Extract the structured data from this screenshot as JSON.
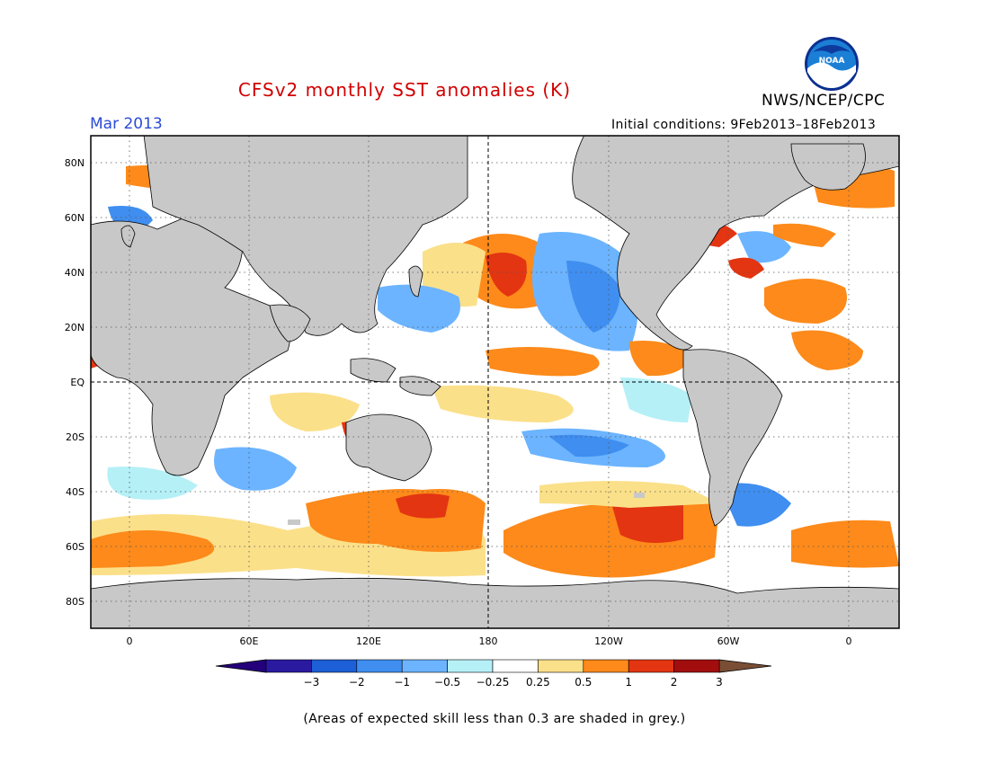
{
  "title": "CFSv2 monthly SST anomalies (K)",
  "month": "Mar 2013",
  "initial_conditions": "Initial conditions: 9Feb2013–18Feb2013",
  "agency": "NWS/NCEP/CPC",
  "logo_text": "NOAA",
  "lat_labels": [
    "80N",
    "60N",
    "40N",
    "20N",
    "EQ",
    "20S",
    "40S",
    "60S",
    "80S"
  ],
  "lon_labels": [
    "0",
    "60E",
    "120E",
    "180",
    "120W",
    "60W",
    "0"
  ],
  "colorbar": {
    "labels": [
      "−3",
      "−2",
      "−1",
      "−0.5",
      "−0.25",
      "0.25",
      "0.5",
      "1",
      "2",
      "3"
    ],
    "colors": [
      "#2a1aa0",
      "#1c5fd6",
      "#3f8ef0",
      "#6cb4ff",
      "#b5f0f7",
      "#ffffff",
      "#fbe08a",
      "#fd8a1a",
      "#e33512",
      "#a20e0e"
    ],
    "under_color": "#24007a",
    "over_color": "#7a4e35"
  },
  "colors": {
    "land": "#c8c8c8",
    "ocean_neutral": "#ffffff",
    "title": "#d10000",
    "month": "#2a4bd7"
  },
  "footnote": "(Areas of expected skill less than 0.3 are shaded in grey.)"
}
